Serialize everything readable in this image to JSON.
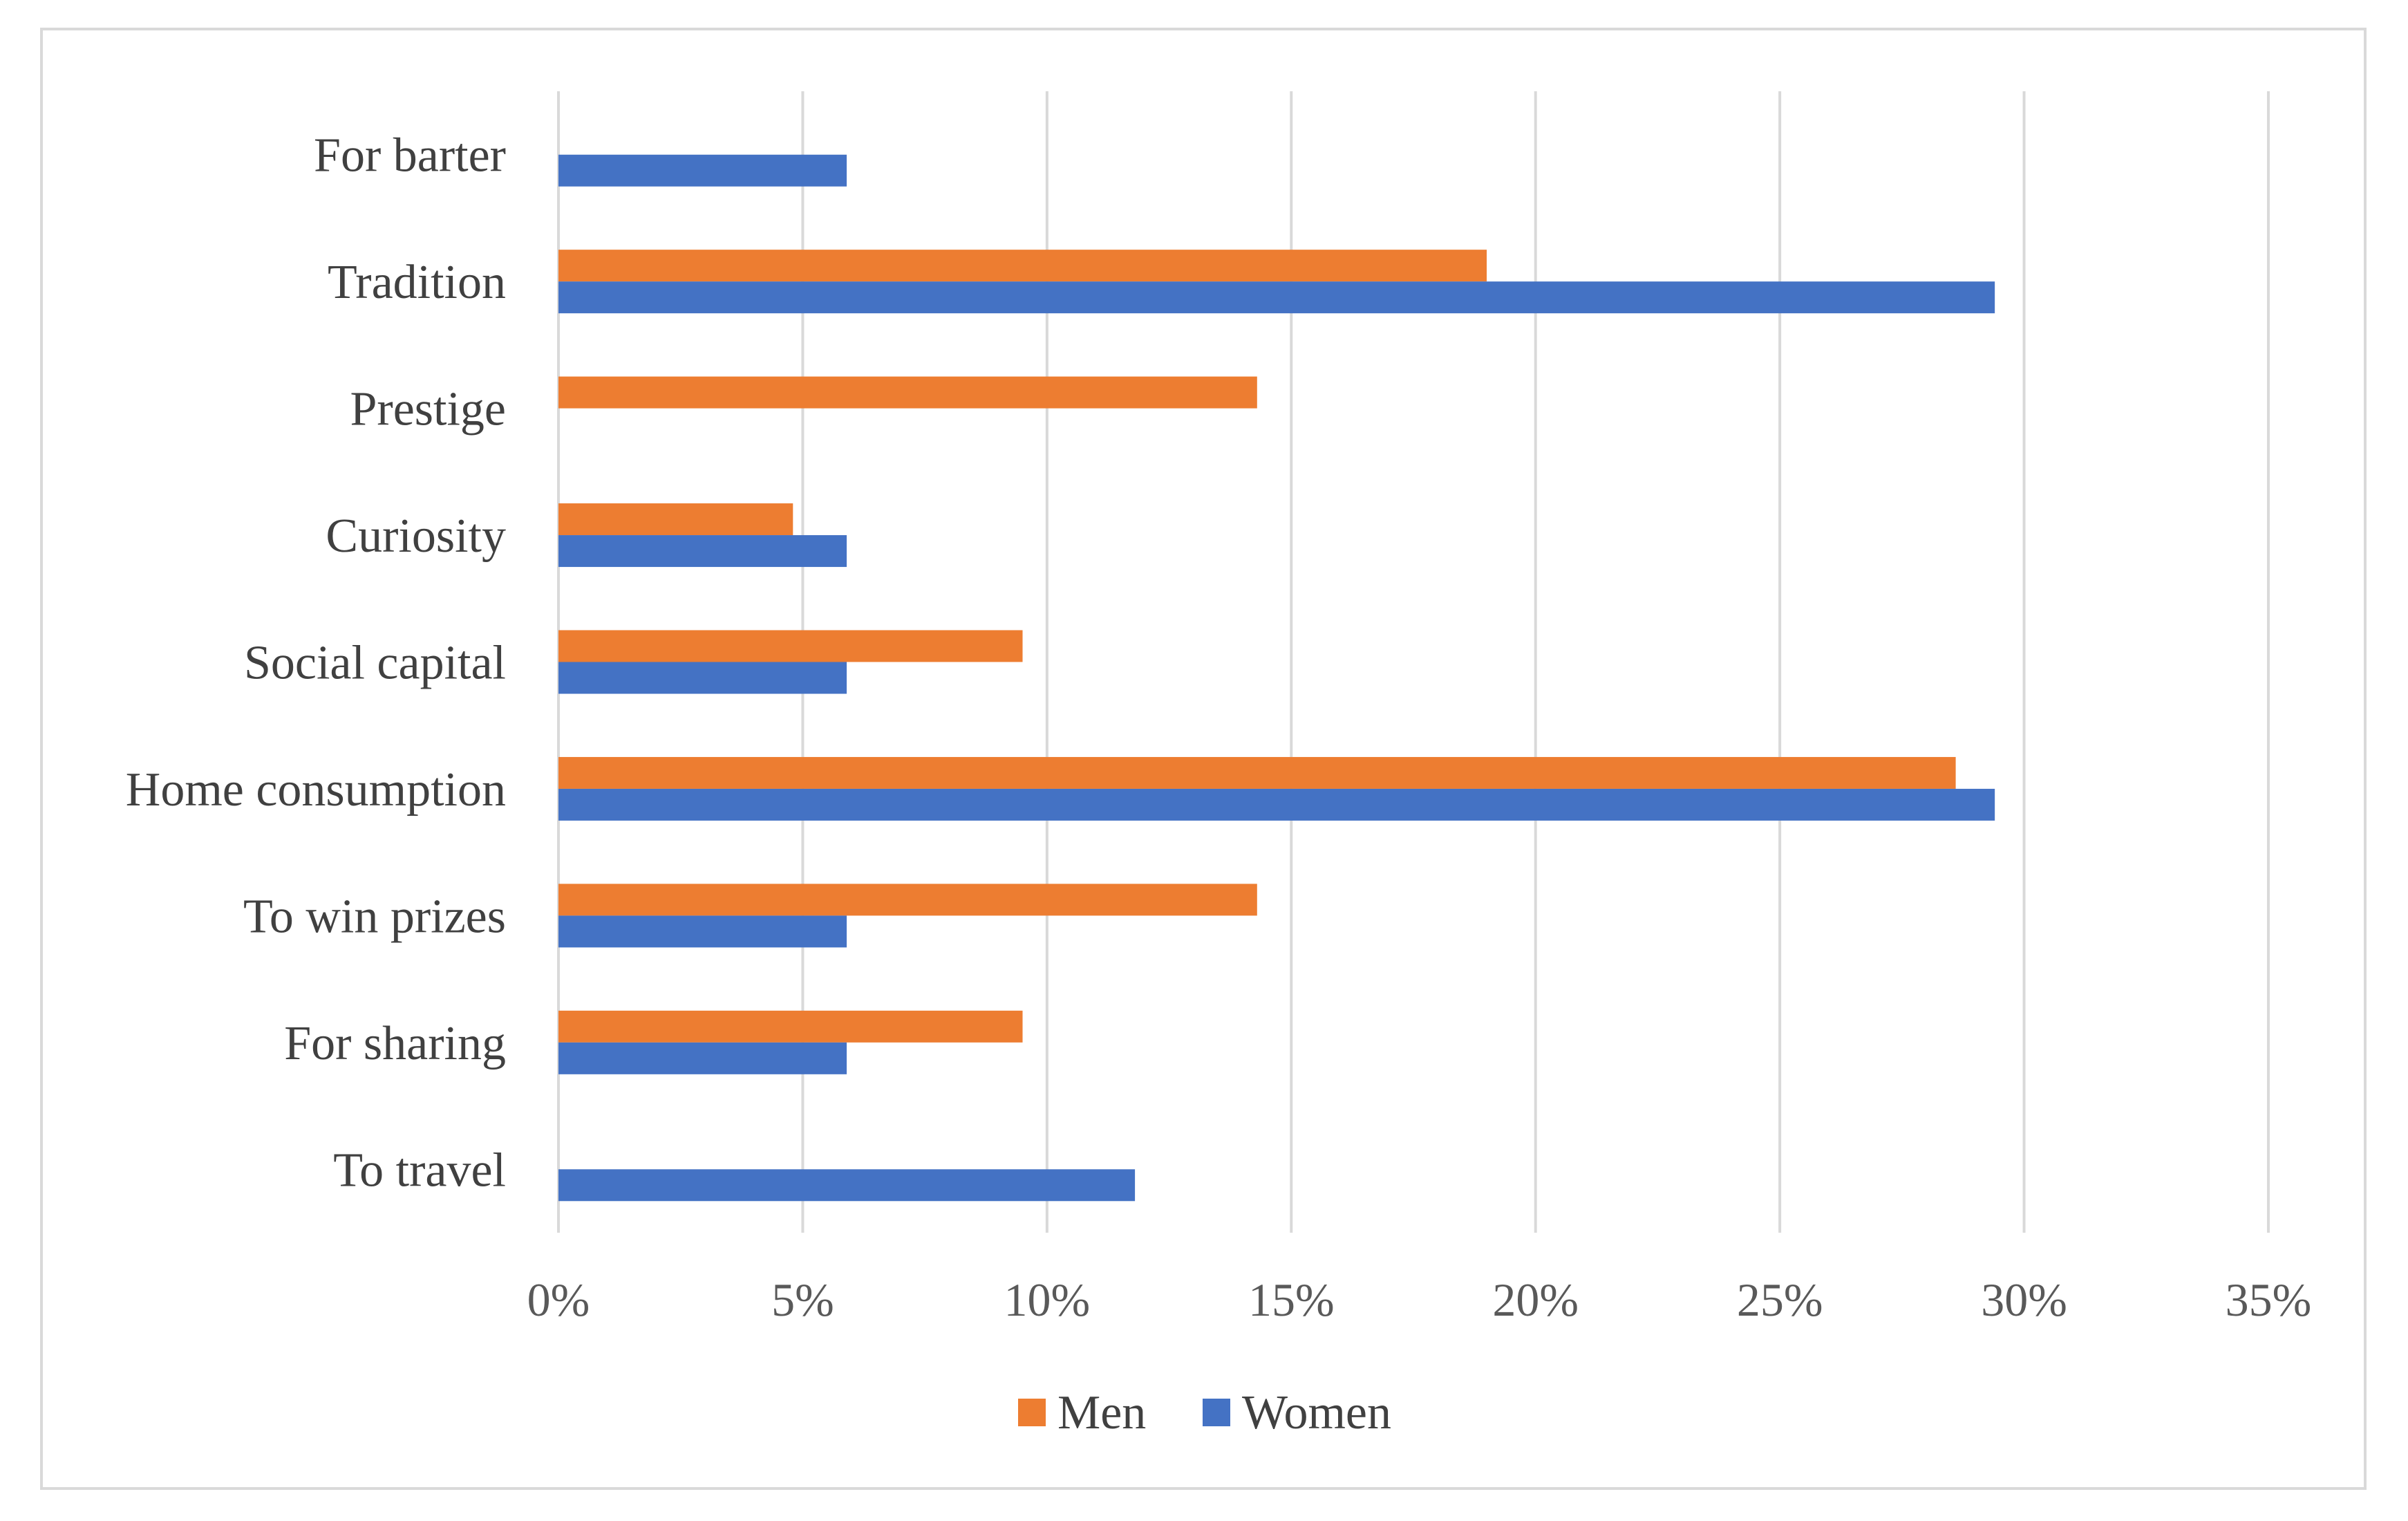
{
  "chart_data": {
    "type": "bar",
    "orientation": "horizontal",
    "title": "",
    "xlabel": "",
    "ylabel": "",
    "categories": [
      "For barter",
      "Tradition",
      "Prestige",
      "Curiosity",
      "Social capital",
      "Home consumption",
      "To win prizes",
      "For sharing",
      "To travel"
    ],
    "series": [
      {
        "name": "Men",
        "color": "#ED7D31",
        "values": [
          0,
          19.0,
          14.3,
          4.8,
          9.5,
          28.6,
          14.3,
          9.5,
          0
        ]
      },
      {
        "name": "Women",
        "color": "#4472C4",
        "values": [
          5.9,
          29.4,
          0,
          5.9,
          5.9,
          29.4,
          5.9,
          5.9,
          11.8
        ]
      }
    ],
    "xlim": [
      0,
      35
    ],
    "ticks": [
      0,
      5,
      10,
      15,
      20,
      25,
      30,
      35
    ],
    "tick_labels": [
      "0%",
      "5%",
      "10%",
      "15%",
      "20%",
      "25%",
      "30%",
      "35%"
    ],
    "grid": true,
    "legend": "bottom",
    "legend_entries": [
      "Men",
      "Women"
    ],
    "colors": {
      "grid": "#d9d9d9",
      "border": "#d9d9d9",
      "text": "#404040",
      "tick_text": "#595959"
    }
  }
}
